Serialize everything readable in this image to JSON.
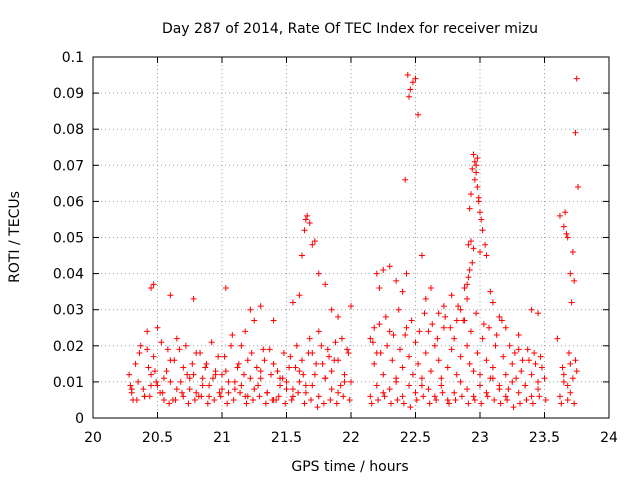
{
  "chart_data": {
    "type": "scatter",
    "title": "Day 287 of 2014, Rate Of TEC Index for receiver mizu",
    "xlabel": "GPS time / hours",
    "ylabel": "ROTI / TECUs",
    "xlim": [
      20,
      24
    ],
    "ylim": [
      0,
      0.1
    ],
    "xticks": [
      "20",
      "20.5",
      "21",
      "21.5",
      "22",
      "22.5",
      "23",
      "23.5",
      "24"
    ],
    "yticks": [
      "0",
      "0.01",
      "0.02",
      "0.03",
      "0.04",
      "0.05",
      "0.06",
      "0.07",
      "0.08",
      "0.09",
      "0.1"
    ],
    "grid": true,
    "marker": "+",
    "color": "#ff0000",
    "series": [
      {
        "name": "ROTI",
        "x": [
          20.28,
          20.3,
          20.33,
          20.36,
          20.4,
          20.42,
          20.45,
          20.48,
          20.5,
          20.52,
          20.55,
          20.58,
          20.6,
          20.62,
          20.65,
          20.68,
          20.7,
          20.72,
          20.75,
          20.78,
          20.8,
          20.82,
          20.85,
          20.88,
          20.9,
          20.92,
          20.95,
          20.98,
          21.0,
          21.02,
          21.05,
          21.08,
          21.1,
          21.12,
          21.15,
          21.18,
          21.2,
          21.22,
          21.25,
          21.28,
          21.3,
          21.32,
          21.35,
          21.38,
          21.4,
          21.42,
          21.45,
          21.48,
          21.5,
          21.52,
          21.55,
          21.58,
          21.6,
          21.62,
          21.65,
          21.68,
          21.7,
          21.72,
          21.75,
          21.78,
          21.8,
          21.82,
          21.85,
          21.88,
          21.9,
          21.92,
          21.95,
          21.98,
          22.0,
          22.15,
          22.18,
          22.2,
          22.22,
          22.25,
          22.28,
          22.3,
          22.32,
          22.35,
          22.38,
          22.4,
          22.42,
          22.45,
          22.48,
          22.5,
          22.52,
          22.55,
          22.58,
          22.6,
          22.62,
          22.65,
          22.68,
          22.7,
          22.72,
          22.75,
          22.78,
          22.8,
          22.82,
          22.85,
          22.88,
          22.9,
          22.92,
          22.95,
          22.98,
          23.0,
          23.02,
          23.05,
          23.08,
          23.1,
          23.12,
          23.15,
          23.18,
          23.2,
          23.22,
          23.25,
          23.28,
          23.3,
          23.32,
          23.35,
          23.38,
          23.4,
          23.42,
          23.45,
          23.48,
          23.5,
          23.62,
          23.65,
          23.68,
          23.7,
          23.72,
          23.75,
          20.3,
          20.35,
          20.4,
          20.45,
          20.5,
          20.55,
          20.6,
          20.65,
          20.7,
          20.75,
          20.8,
          20.85,
          20.9,
          20.95,
          21.0,
          21.05,
          21.1,
          21.15,
          21.2,
          21.25,
          21.3,
          21.35,
          21.4,
          21.45,
          21.5,
          21.55,
          21.6,
          21.65,
          21.7,
          21.75,
          21.8,
          21.85,
          21.9,
          21.95,
          22.15,
          22.2,
          22.25,
          22.3,
          22.35,
          22.4,
          22.45,
          22.5,
          22.55,
          22.6,
          22.65,
          22.7,
          22.75,
          22.8,
          22.85,
          22.9,
          22.95,
          23.0,
          23.05,
          23.1,
          23.15,
          23.2,
          23.25,
          23.3,
          23.35,
          23.4,
          23.45,
          23.65,
          23.7,
          20.29,
          20.34,
          20.39,
          20.44,
          20.49,
          20.54,
          20.59,
          20.64,
          20.69,
          20.74,
          20.79,
          20.84,
          20.89,
          20.94,
          20.99,
          21.04,
          21.09,
          21.14,
          21.19,
          21.24,
          21.29,
          21.34,
          21.39,
          21.44,
          21.49,
          21.54,
          21.59,
          21.64,
          21.69,
          21.74,
          21.79,
          21.84,
          21.89,
          21.94,
          21.99,
          22.16,
          22.21,
          22.26,
          22.31,
          22.36,
          22.41,
          22.46,
          22.51,
          22.56,
          22.61,
          22.66,
          22.71,
          22.76,
          22.81,
          22.86,
          22.91,
          22.96,
          23.01,
          23.06,
          23.11,
          23.16,
          23.21,
          23.26,
          23.31,
          23.36,
          23.41,
          23.46,
          23.51,
          23.63,
          23.68,
          23.73,
          20.31,
          20.37,
          20.43,
          20.47,
          20.53,
          20.57,
          20.63,
          20.67,
          20.73,
          20.77,
          20.83,
          20.87,
          20.93,
          20.97,
          21.03,
          21.07,
          21.13,
          21.17,
          21.23,
          21.27,
          21.33,
          21.37,
          21.43,
          21.47,
          21.53,
          21.57,
          21.63,
          21.67,
          21.73,
          21.77,
          21.83,
          21.87,
          21.93,
          21.97,
          22.17,
          22.23,
          22.27,
          22.33,
          22.37,
          22.43,
          22.47,
          22.53,
          22.57,
          22.63,
          22.67,
          22.73,
          22.77,
          22.83,
          22.87,
          22.93,
          22.97,
          23.03,
          23.07,
          23.13,
          23.17,
          23.23,
          23.27,
          23.33,
          23.37,
          23.43,
          23.47,
          23.64,
          23.69,
          23.74,
          20.42,
          20.45,
          20.47,
          20.6,
          20.78,
          21.03,
          21.18,
          21.22,
          21.3,
          21.4,
          21.55,
          21.6,
          21.62,
          21.64,
          21.65,
          21.66,
          21.68,
          21.7,
          21.72,
          21.75,
          21.8,
          21.85,
          21.9,
          22.0,
          22.18,
          22.2,
          22.22,
          22.25,
          22.3,
          22.35,
          22.4,
          22.42,
          22.43,
          22.44,
          22.45,
          22.46,
          22.48,
          22.5,
          22.52,
          22.55,
          22.58,
          22.62,
          22.68,
          22.72,
          22.78,
          22.82,
          22.85,
          22.88,
          22.9,
          22.91,
          22.92,
          22.93,
          22.94,
          22.95,
          22.96,
          22.97,
          22.98,
          22.99,
          23.0,
          23.02,
          23.04,
          23.05,
          23.08,
          23.1,
          23.15,
          23.2,
          23.3,
          23.4,
          23.45,
          23.6,
          23.62,
          23.65,
          23.66,
          23.67,
          23.68,
          23.7,
          23.71,
          23.72,
          23.73,
          23.74,
          23.75,
          23.76,
          22.95,
          22.96,
          22.97,
          22.98,
          22.99,
          23.0,
          23.01,
          22.93,
          22.94,
          22.92,
          22.91,
          22.9
        ],
        "y": [
          0.012,
          0.008,
          0.015,
          0.018,
          0.006,
          0.024,
          0.009,
          0.013,
          0.025,
          0.007,
          0.011,
          0.019,
          0.016,
          0.005,
          0.022,
          0.01,
          0.014,
          0.02,
          0.008,
          0.012,
          0.018,
          0.006,
          0.011,
          0.015,
          0.009,
          0.021,
          0.013,
          0.007,
          0.012,
          0.017,
          0.01,
          0.023,
          0.008,
          0.014,
          0.02,
          0.006,
          0.016,
          0.011,
          0.027,
          0.009,
          0.013,
          0.019,
          0.007,
          0.012,
          0.015,
          0.005,
          0.011,
          0.018,
          0.01,
          0.014,
          0.008,
          0.02,
          0.013,
          0.016,
          0.009,
          0.022,
          0.018,
          0.012,
          0.024,
          0.015,
          0.011,
          0.019,
          0.013,
          0.021,
          0.016,
          0.009,
          0.012,
          0.018,
          0.01,
          0.022,
          0.015,
          0.018,
          0.026,
          0.012,
          0.02,
          0.024,
          0.016,
          0.011,
          0.019,
          0.014,
          0.023,
          0.017,
          0.012,
          0.021,
          0.015,
          0.009,
          0.018,
          0.024,
          0.013,
          0.02,
          0.016,
          0.011,
          0.025,
          0.014,
          0.019,
          0.022,
          0.012,
          0.017,
          0.027,
          0.02,
          0.015,
          0.013,
          0.018,
          0.012,
          0.022,
          0.016,
          0.011,
          0.014,
          0.02,
          0.009,
          0.017,
          0.012,
          0.008,
          0.015,
          0.011,
          0.019,
          0.013,
          0.009,
          0.016,
          0.012,
          0.018,
          0.01,
          0.014,
          0.011,
          0.006,
          0.012,
          0.009,
          0.015,
          0.011,
          0.013,
          0.007,
          0.01,
          0.006,
          0.012,
          0.009,
          0.005,
          0.01,
          0.008,
          0.006,
          0.011,
          0.007,
          0.009,
          0.006,
          0.012,
          0.008,
          0.007,
          0.01,
          0.009,
          0.006,
          0.008,
          0.011,
          0.007,
          0.005,
          0.009,
          0.008,
          0.006,
          0.01,
          0.007,
          0.009,
          0.006,
          0.011,
          0.008,
          0.007,
          0.01,
          0.006,
          0.009,
          0.007,
          0.008,
          0.01,
          0.006,
          0.009,
          0.007,
          0.011,
          0.008,
          0.006,
          0.009,
          0.005,
          0.007,
          0.01,
          0.008,
          0.006,
          0.009,
          0.007,
          0.011,
          0.008,
          0.006,
          0.01,
          0.007,
          0.009,
          0.006,
          0.008,
          0.01,
          0.007,
          0.009,
          0.005,
          0.008,
          0.006,
          0.01,
          0.007,
          0.004,
          0.005,
          0.007,
          0.004,
          0.005,
          0.006,
          0.004,
          0.005,
          0.006,
          0.004,
          0.005,
          0.007,
          0.004,
          0.005,
          0.006,
          0.004,
          0.005,
          0.006,
          0.004,
          0.005,
          0.007,
          0.004,
          0.005,
          0.003,
          0.004,
          0.005,
          0.004,
          0.006,
          0.005,
          0.004,
          0.005,
          0.006,
          0.004,
          0.005,
          0.004,
          0.003,
          0.005,
          0.006,
          0.004,
          0.005,
          0.007,
          0.004,
          0.005,
          0.006,
          0.004,
          0.005,
          0.004,
          0.006,
          0.005,
          0.004,
          0.005,
          0.003,
          0.004,
          0.005,
          0.004,
          0.006,
          0.005,
          0.004,
          0.005,
          0.004,
          0.005,
          0.02,
          0.014,
          0.017,
          0.021,
          0.013,
          0.016,
          0.019,
          0.012,
          0.015,
          0.018,
          0.014,
          0.011,
          0.017,
          0.013,
          0.02,
          0.015,
          0.012,
          0.018,
          0.014,
          0.016,
          0.019,
          0.013,
          0.011,
          0.017,
          0.014,
          0.012,
          0.018,
          0.015,
          0.02,
          0.017,
          0.016,
          0.022,
          0.019,
          0.021,
          0.018,
          0.028,
          0.023,
          0.03,
          0.025,
          0.027,
          0.024,
          0.029,
          0.026,
          0.022,
          0.028,
          0.025,
          0.031,
          0.027,
          0.024,
          0.029,
          0.026,
          0.025,
          0.023,
          0.027,
          0.02,
          0.018,
          0.016,
          0.019,
          0.015,
          0.017,
          0.014,
          0.018,
          0.016,
          0.019,
          0.036,
          0.037,
          0.034,
          0.033,
          0.036,
          0.024,
          0.03,
          0.031,
          0.027,
          0.032,
          0.034,
          0.045,
          0.052,
          0.055,
          0.056,
          0.054,
          0.048,
          0.049,
          0.04,
          0.037,
          0.03,
          0.028,
          0.031,
          0.025,
          0.04,
          0.036,
          0.041,
          0.042,
          0.038,
          0.035,
          0.066,
          0.04,
          0.095,
          0.089,
          0.091,
          0.093,
          0.094,
          0.084,
          0.045,
          0.033,
          0.036,
          0.029,
          0.031,
          0.034,
          0.027,
          0.03,
          0.036,
          0.033,
          0.048,
          0.058,
          0.062,
          0.069,
          0.073,
          0.071,
          0.068,
          0.064,
          0.06,
          0.057,
          0.052,
          0.048,
          0.045,
          0.035,
          0.032,
          0.028,
          0.025,
          0.023,
          0.03,
          0.029,
          0.022,
          0.056,
          0.053,
          0.057,
          0.051,
          0.05,
          0.04,
          0.032,
          0.046,
          0.038,
          0.079,
          0.094,
          0.064,
          0.047,
          0.066,
          0.07,
          0.072,
          0.061,
          0.046,
          0.055,
          0.049,
          0.043,
          0.041,
          0.039,
          0.037
        ]
      }
    ]
  }
}
